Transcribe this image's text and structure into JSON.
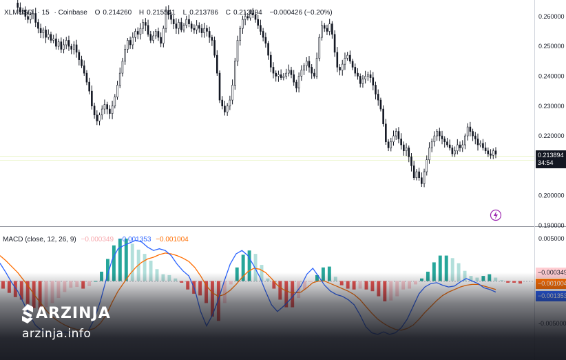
{
  "legend": {
    "symbol": "XLMUSD",
    "interval": "15",
    "exchange": "Coinbase",
    "o_label": "O",
    "o": "0.214260",
    "h_label": "H",
    "h": "0.215541",
    "l_label": "L",
    "l": "0.213786",
    "c_label": "C",
    "c": "0.213894",
    "change": "−0.000426 (−0.20%)"
  },
  "macd_legend": {
    "title": "MACD (close, 12, 26, 9)",
    "hist": "−0.000349",
    "macd": "−0.001353",
    "signal": "−0.001004"
  },
  "price_tag": {
    "value": "0.213894",
    "countdown": "34:54"
  },
  "macd_tags": {
    "hist": "−0.000349",
    "signal": "−0.001004",
    "macd": "−0.001353"
  },
  "brand": {
    "name": "ARZINJA",
    "url": "arzinja.info"
  },
  "colors": {
    "up": "#26a69a",
    "down": "#ef5350",
    "hist_up_light": "#b2dfdb",
    "hist_down_light": "#ffcdd2",
    "macd": "#2962ff",
    "signal": "#ff6d00",
    "candle": "#131722"
  },
  "chart_data": [
    {
      "type": "candlestick",
      "title": "",
      "y_ticks": [
        "0.260000",
        "0.250000",
        "0.240000",
        "0.230000",
        "0.220000",
        "0.210000",
        "0.200000",
        "0.190000"
      ],
      "ylim": [
        0.19,
        0.2655
      ],
      "current_price": 0.213894,
      "close_path": [
        0.2645,
        0.263,
        0.2615,
        0.262,
        0.26,
        0.259,
        0.2605,
        0.261,
        0.258,
        0.256,
        0.2545,
        0.2555,
        0.253,
        0.254,
        0.252,
        0.2525,
        0.25,
        0.2515,
        0.249,
        0.2505,
        0.252,
        0.25,
        0.249,
        0.2505,
        0.248,
        0.2455,
        0.2435,
        0.241,
        0.238,
        0.235,
        0.23,
        0.227,
        0.225,
        0.227,
        0.229,
        0.2305,
        0.229,
        0.2275,
        0.23,
        0.233,
        0.237,
        0.241,
        0.245,
        0.249,
        0.252,
        0.2505,
        0.253,
        0.255,
        0.254,
        0.256,
        0.258,
        0.257,
        0.254,
        0.252,
        0.2535,
        0.255,
        0.253,
        0.251,
        0.256,
        0.262,
        0.2605,
        0.259,
        0.2575,
        0.256,
        0.258,
        0.2555,
        0.257,
        0.259,
        0.2575,
        0.256,
        0.2555,
        0.257,
        0.256,
        0.2545,
        0.256,
        0.255,
        0.253,
        0.252,
        0.247,
        0.241,
        0.232,
        0.23,
        0.228,
        0.23,
        0.232,
        0.237,
        0.245,
        0.252,
        0.256,
        0.259,
        0.26,
        0.2595,
        0.261,
        0.2605,
        0.259,
        0.257,
        0.255,
        0.253,
        0.251,
        0.247,
        0.243,
        0.241,
        0.24,
        0.2405,
        0.2395,
        0.24,
        0.241,
        0.242,
        0.2405,
        0.238,
        0.236,
        0.24,
        0.242,
        0.2435,
        0.245,
        0.243,
        0.241,
        0.24,
        0.246,
        0.253,
        0.257,
        0.256,
        0.255,
        0.2575,
        0.254,
        0.248,
        0.243,
        0.242,
        0.244,
        0.246,
        0.247,
        0.245,
        0.243,
        0.241,
        0.24,
        0.2375,
        0.239,
        0.24,
        0.2405,
        0.2395,
        0.237,
        0.234,
        0.232,
        0.229,
        0.224,
        0.218,
        0.216,
        0.218,
        0.22,
        0.2215,
        0.219,
        0.217,
        0.215,
        0.216,
        0.213,
        0.21,
        0.206,
        0.208,
        0.206,
        0.204,
        0.208,
        0.212,
        0.216,
        0.218,
        0.22,
        0.2215,
        0.22,
        0.219,
        0.218,
        0.217,
        0.216,
        0.214,
        0.215,
        0.217,
        0.216,
        0.217,
        0.22,
        0.223,
        0.2215,
        0.22,
        0.219,
        0.217,
        0.2175,
        0.216,
        0.215,
        0.214,
        0.2135,
        0.215,
        0.2139
      ]
    },
    {
      "type": "macd",
      "title": "MACD (close, 12, 26, 9)",
      "y_ticks": [
        "0.005000",
        "-0.005000"
      ],
      "ylim": [
        -0.0072,
        0.0063
      ],
      "macd_path": [
        0.0021,
        0.001,
        -0.0002,
        -0.0012,
        -0.0026,
        -0.004,
        -0.0052,
        -0.0058,
        -0.0062,
        -0.0063,
        -0.0061,
        -0.006,
        -0.0062,
        -0.0066,
        -0.0064,
        -0.0058,
        -0.0045,
        -0.0024,
        0.0002,
        0.0025,
        0.0038,
        0.0042,
        0.0045,
        0.0048,
        0.0046,
        0.004,
        0.0036,
        0.0038,
        0.0036,
        0.003,
        0.002,
        0.0012,
        0.0006,
        -0.001,
        -0.0036,
        -0.0053,
        -0.004,
        -0.0022,
        0.0,
        0.002,
        0.0032,
        0.0036,
        0.003,
        0.0018,
        0.0005,
        -0.0012,
        -0.0028,
        -0.0036,
        -0.003,
        -0.0023,
        -0.0015,
        -0.0006,
        0.0008,
        0.0015,
        0.0005,
        -0.0005,
        -0.0012,
        -0.0016,
        -0.0018,
        -0.0022,
        -0.0028,
        -0.004,
        -0.0054,
        -0.0061,
        -0.0063,
        -0.006,
        -0.0063,
        -0.0061,
        -0.0055,
        -0.0045,
        -0.003,
        -0.0015,
        -0.0007,
        -0.0003,
        -0.0002,
        -0.0005,
        -0.0007,
        -0.0006,
        -0.0001,
        0.0003,
        0.0,
        -0.0003,
        -0.0008,
        -0.001,
        -0.0013
      ],
      "signal_path": [
        0.003,
        0.0024,
        0.0017,
        0.001,
        0.0001,
        -0.0008,
        -0.0018,
        -0.0027,
        -0.0036,
        -0.0043,
        -0.0048,
        -0.0052,
        -0.0055,
        -0.0057,
        -0.0058,
        -0.0058,
        -0.0056,
        -0.005,
        -0.004,
        -0.0025,
        -0.0012,
        -0.0002,
        0.0008,
        0.0016,
        0.0022,
        0.0026,
        0.0028,
        0.0031,
        0.0033,
        0.0032,
        0.003,
        0.0027,
        0.0023,
        0.0016,
        0.0006,
        -0.0006,
        -0.0014,
        -0.0018,
        -0.0016,
        -0.0011,
        -0.0004,
        0.0004,
        0.0011,
        0.0015,
        0.0014,
        0.001,
        0.0003,
        -0.0005,
        -0.001,
        -0.0013,
        -0.0014,
        -0.0013,
        -0.0008,
        -0.0002,
        0.0,
        0.0,
        -0.0003,
        -0.0006,
        -0.0009,
        -0.0012,
        -0.0016,
        -0.0022,
        -0.003,
        -0.0038,
        -0.0045,
        -0.005,
        -0.0054,
        -0.0057,
        -0.0058,
        -0.0056,
        -0.0052,
        -0.0045,
        -0.0037,
        -0.003,
        -0.0023,
        -0.0017,
        -0.0013,
        -0.001,
        -0.0007,
        -0.0005,
        -0.0004,
        -0.0004,
        -0.0006,
        -0.0008,
        -0.001
      ],
      "histogram": [
        -0.0009,
        -0.0014,
        -0.0019,
        -0.0022,
        -0.0027,
        -0.0032,
        -0.0034,
        -0.0031,
        -0.0026,
        -0.002,
        -0.0013,
        -0.0008,
        -0.0007,
        -0.0009,
        -0.0006,
        0.0,
        0.0011,
        0.0026,
        0.0042,
        0.005,
        0.005,
        0.0044,
        0.0037,
        0.0032,
        0.0024,
        0.0014,
        0.0008,
        0.0007,
        0.0003,
        -0.0002,
        -0.001,
        -0.0015,
        -0.0017,
        -0.0026,
        -0.0042,
        -0.0047,
        -0.0026,
        -0.0004,
        0.0016,
        0.0031,
        0.0036,
        0.0032,
        0.0019,
        0.0003,
        -0.0009,
        -0.0022,
        -0.0031,
        -0.0031,
        -0.002,
        -0.001,
        -0.0001,
        0.0007,
        0.0016,
        0.0017,
        0.0005,
        -0.0005,
        -0.0009,
        -0.001,
        -0.0009,
        -0.001,
        -0.0012,
        -0.0018,
        -0.0024,
        -0.0023,
        -0.0018,
        -0.001,
        -0.0009,
        -0.0004,
        0.0003,
        0.0011,
        0.0022,
        0.003,
        0.003,
        0.0027,
        0.0021,
        0.0012,
        0.0006,
        0.0004,
        0.0006,
        0.0008,
        0.0004,
        0.0001,
        -0.0002,
        -0.0002,
        -0.0003
      ]
    }
  ]
}
